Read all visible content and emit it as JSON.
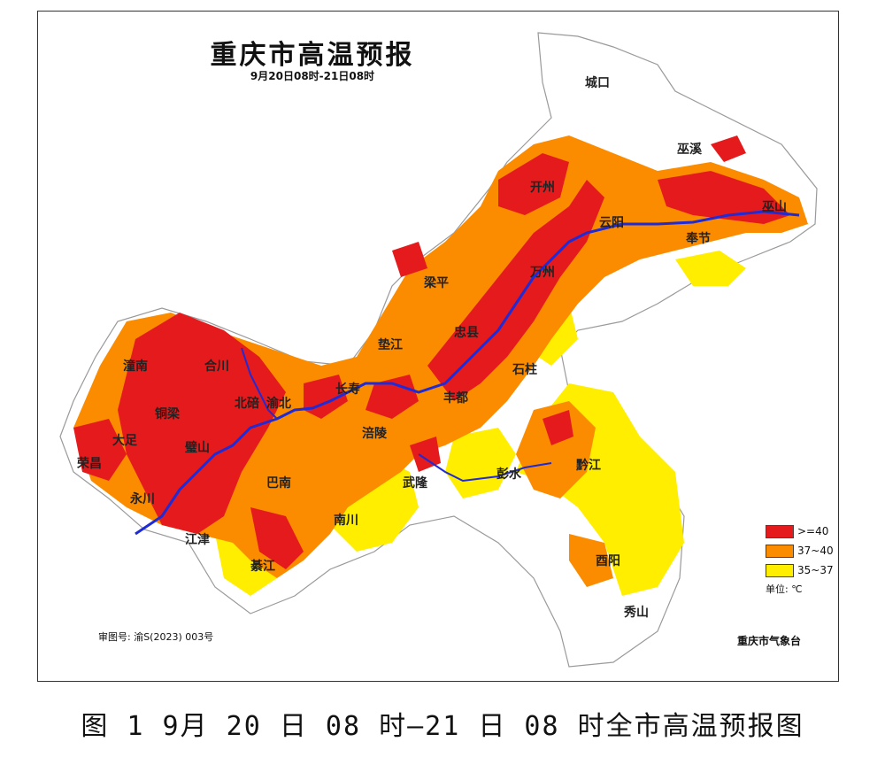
{
  "map": {
    "title": "重庆市高温预报",
    "subtitle": "9月20日08时-21日08时",
    "places": [
      "城口",
      "巫溪",
      "开州",
      "云阳",
      "巫山",
      "奉节",
      "梁平",
      "万州",
      "垫江",
      "忠县",
      "石柱",
      "长寿",
      "丰都",
      "涪陵",
      "渝北",
      "北碚",
      "合川",
      "潼南",
      "铜梁",
      "大足",
      "荣昌",
      "永川",
      "璧山",
      "江津",
      "巴南",
      "南川",
      "綦江",
      "武隆",
      "彭水",
      "黔江",
      "酉阳",
      "秀山"
    ],
    "approval_number": "审图号: 渝S(2023) 003号",
    "agency": "重庆市气象台",
    "unit_label": "单位: ℃"
  },
  "legend": {
    "items": [
      {
        "label": ">=40",
        "color": "#e41a1c"
      },
      {
        "label": "37~40",
        "color": "#fb8c00"
      },
      {
        "label": "35~37",
        "color": "#ffee00"
      }
    ]
  },
  "colors": {
    "river": "#1f2bd6",
    "outline": "#9a9a9a",
    "background": "#ffffff"
  },
  "caption": "图 1  9月 20 日 08 时—21 日 08 时全市高温预报图"
}
